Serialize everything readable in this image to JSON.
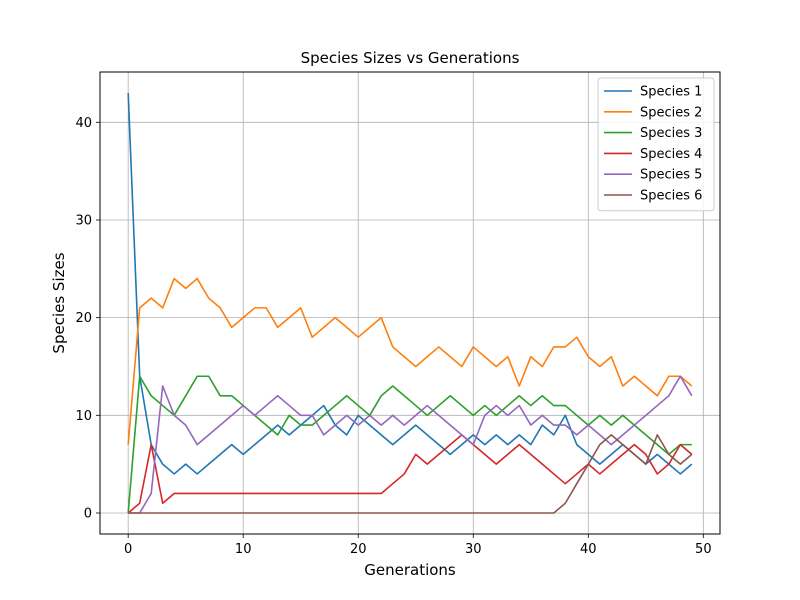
{
  "chart_data": {
    "type": "line",
    "title": "Species Sizes vs Generations",
    "xlabel": "Generations",
    "ylabel": "Species Sizes",
    "xlim": [
      -2.45,
      51.45
    ],
    "ylim": [
      -2.15,
      45.15
    ],
    "xticks": [
      0,
      10,
      20,
      30,
      40,
      50
    ],
    "yticks": [
      0,
      10,
      20,
      30,
      40
    ],
    "grid": true,
    "legend_position": "top-right",
    "x": [
      0,
      1,
      2,
      3,
      4,
      5,
      6,
      7,
      8,
      9,
      10,
      11,
      12,
      13,
      14,
      15,
      16,
      17,
      18,
      19,
      20,
      21,
      22,
      23,
      24,
      25,
      26,
      27,
      28,
      29,
      30,
      31,
      32,
      33,
      34,
      35,
      36,
      37,
      38,
      39,
      40,
      41,
      42,
      43,
      44,
      45,
      46,
      47,
      48,
      49
    ],
    "series": [
      {
        "name": "Species 1",
        "color": "#1f77b4",
        "values": [
          43,
          14,
          7,
          5,
          4,
          5,
          4,
          5,
          6,
          7,
          6,
          7,
          8,
          9,
          8,
          9,
          10,
          11,
          9,
          8,
          10,
          9,
          8,
          7,
          8,
          9,
          8,
          7,
          6,
          7,
          8,
          7,
          8,
          7,
          8,
          7,
          9,
          8,
          10,
          7,
          6,
          5,
          6,
          7,
          6,
          5,
          6,
          5,
          4,
          5
        ]
      },
      {
        "name": "Species 2",
        "color": "#ff7f0e",
        "values": [
          7,
          21,
          22,
          21,
          24,
          23,
          24,
          22,
          21,
          19,
          20,
          21,
          21,
          19,
          20,
          21,
          18,
          19,
          20,
          19,
          18,
          19,
          20,
          17,
          16,
          15,
          16,
          17,
          16,
          15,
          17,
          16,
          15,
          16,
          13,
          16,
          15,
          17,
          17,
          18,
          16,
          15,
          16,
          13,
          14,
          13,
          12,
          14,
          14,
          13
        ]
      },
      {
        "name": "Species 3",
        "color": "#2ca02c",
        "values": [
          0,
          14,
          12,
          11,
          10,
          12,
          14,
          14,
          12,
          12,
          11,
          10,
          9,
          8,
          10,
          9,
          9,
          10,
          11,
          12,
          11,
          10,
          12,
          13,
          12,
          11,
          10,
          11,
          12,
          11,
          10,
          11,
          10,
          11,
          12,
          11,
          12,
          11,
          11,
          10,
          9,
          10,
          9,
          10,
          9,
          8,
          7,
          6,
          7,
          7
        ]
      },
      {
        "name": "Species 4",
        "color": "#d62728",
        "values": [
          0,
          1,
          7,
          1,
          2,
          2,
          2,
          2,
          2,
          2,
          2,
          2,
          2,
          2,
          2,
          2,
          2,
          2,
          2,
          2,
          2,
          2,
          2,
          3,
          4,
          6,
          5,
          6,
          7,
          8,
          7,
          6,
          5,
          6,
          7,
          6,
          5,
          4,
          3,
          4,
          5,
          4,
          5,
          6,
          7,
          6,
          4,
          5,
          7,
          6
        ]
      },
      {
        "name": "Species 5",
        "color": "#9467bd",
        "values": [
          0,
          0,
          2,
          13,
          10,
          9,
          7,
          8,
          9,
          10,
          11,
          10,
          11,
          12,
          11,
          10,
          10,
          8,
          9,
          10,
          9,
          10,
          9,
          10,
          9,
          10,
          11,
          10,
          9,
          8,
          7,
          10,
          11,
          10,
          11,
          9,
          10,
          9,
          9,
          8,
          9,
          8,
          7,
          8,
          9,
          10,
          11,
          12,
          14,
          12
        ]
      },
      {
        "name": "Species 6",
        "color": "#8c564b",
        "values": [
          0,
          0,
          0,
          0,
          0,
          0,
          0,
          0,
          0,
          0,
          0,
          0,
          0,
          0,
          0,
          0,
          0,
          0,
          0,
          0,
          0,
          0,
          0,
          0,
          0,
          0,
          0,
          0,
          0,
          0,
          0,
          0,
          0,
          0,
          0,
          0,
          0,
          0,
          1,
          3,
          5,
          7,
          8,
          7,
          6,
          5,
          8,
          6,
          5,
          6
        ]
      }
    ]
  }
}
